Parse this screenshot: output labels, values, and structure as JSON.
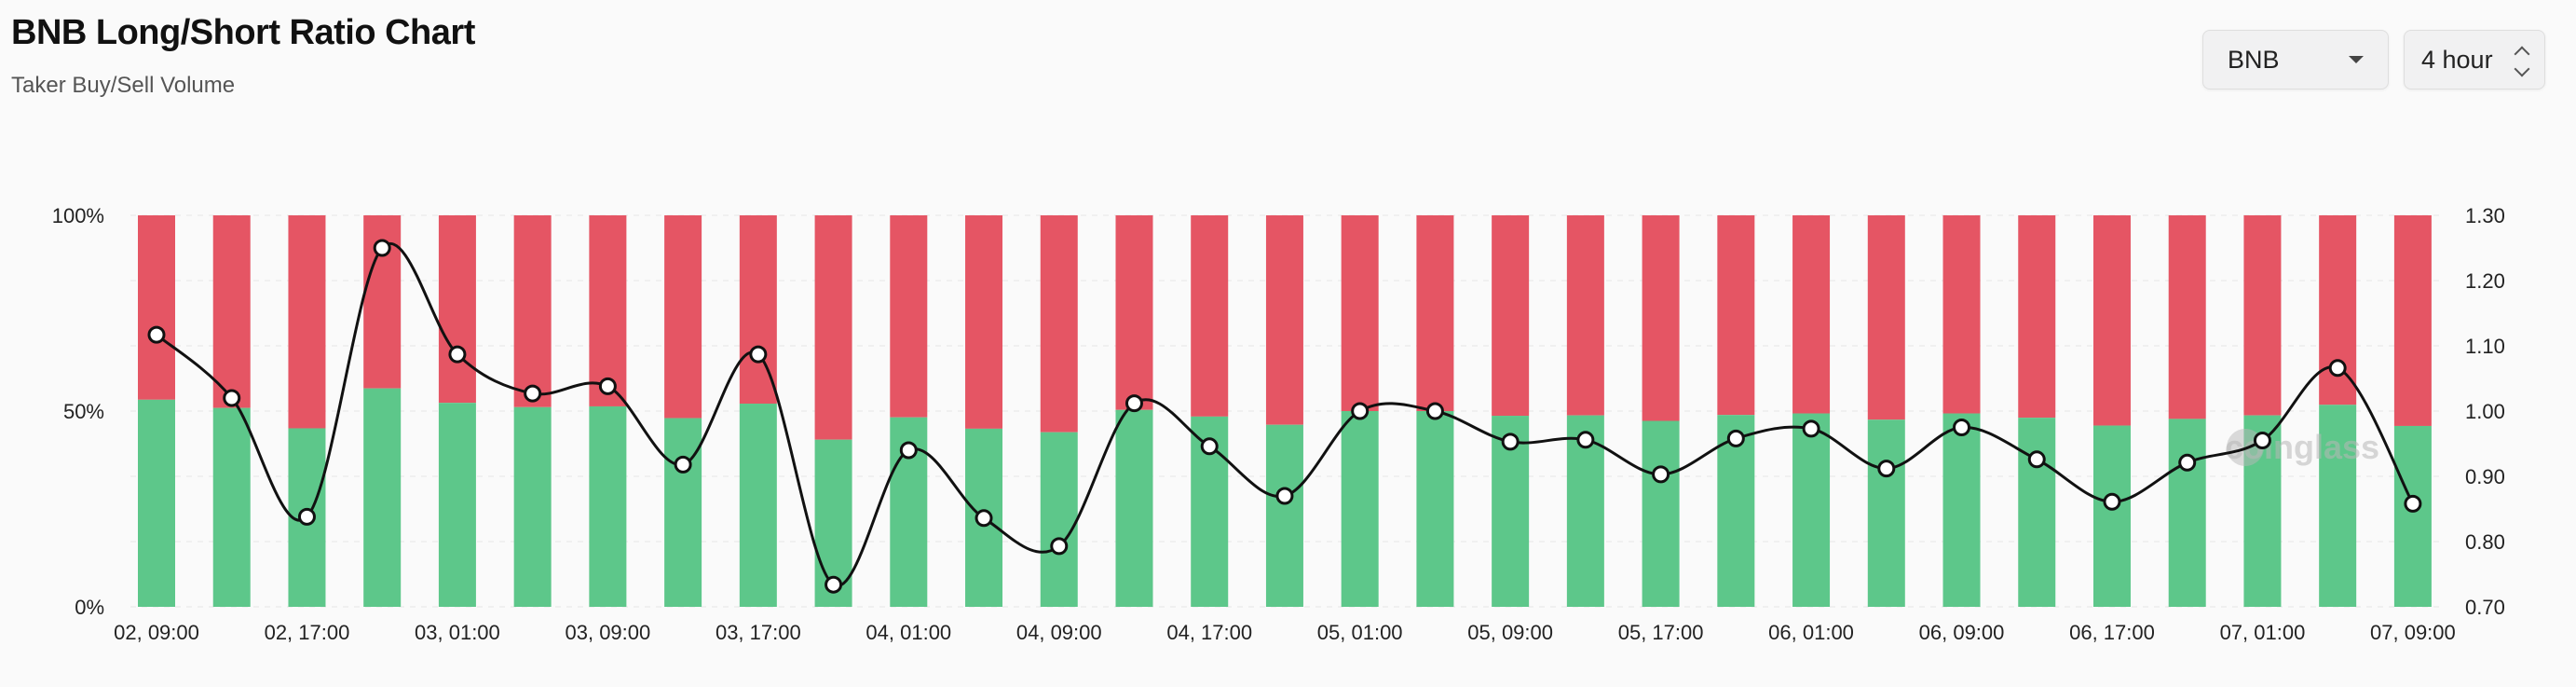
{
  "header": {
    "title": "BNB Long/Short Ratio Chart",
    "subtitle": "Taker Buy/Sell Volume"
  },
  "controls": {
    "symbol_label": "BNB",
    "interval_label": "4 hour"
  },
  "watermark": "coinglass",
  "colors": {
    "long": "#5dc78a",
    "short": "#e55564",
    "line": "#111111"
  },
  "chart_data": {
    "type": "bar",
    "stacked": true,
    "x_tick_labels": [
      "02, 09:00",
      "02, 17:00",
      "03, 01:00",
      "03, 09:00",
      "03, 17:00",
      "04, 01:00",
      "04, 09:00",
      "04, 17:00",
      "05, 01:00",
      "05, 09:00",
      "05, 17:00",
      "06, 01:00",
      "06, 09:00",
      "06, 17:00",
      "07, 01:00",
      "07, 09:00"
    ],
    "y_left": {
      "ticks": [
        "0%",
        "50%",
        "100%"
      ],
      "range": [
        0,
        100
      ]
    },
    "y_right": {
      "ticks": [
        "0.70",
        "0.80",
        "0.90",
        "1.00",
        "1.10",
        "1.20",
        "1.30"
      ],
      "range": [
        0.7,
        1.3
      ]
    },
    "series": [
      {
        "name": "long",
        "axis": "left",
        "values": [
          52.9,
          50.8,
          45.6,
          55.8,
          52.1,
          51.0,
          51.2,
          48.2,
          51.9,
          42.7,
          48.4,
          45.5,
          44.6,
          50.3,
          48.6,
          46.5,
          50.0,
          50.0,
          48.8,
          48.9,
          47.5,
          49.0,
          49.4,
          47.8,
          49.4,
          48.3,
          46.3,
          48.0,
          48.9,
          51.6,
          46.2
        ]
      },
      {
        "name": "short",
        "axis": "left",
        "values": [
          47.1,
          49.2,
          54.4,
          44.2,
          47.9,
          49.0,
          48.8,
          51.8,
          48.1,
          57.3,
          51.6,
          54.5,
          55.4,
          49.7,
          51.4,
          53.5,
          50.0,
          50.0,
          51.2,
          51.1,
          52.5,
          51.0,
          50.6,
          52.2,
          50.6,
          51.7,
          53.7,
          52.0,
          51.1,
          48.4,
          53.8
        ]
      },
      {
        "name": "ratio",
        "axis": "right",
        "type": "line",
        "values": [
          1.117,
          1.02,
          0.838,
          1.25,
          1.087,
          1.027,
          1.038,
          0.918,
          1.087,
          0.734,
          0.94,
          0.836,
          0.793,
          1.012,
          0.946,
          0.87,
          1.0,
          1.0,
          0.953,
          0.956,
          0.903,
          0.958,
          0.973,
          0.912,
          0.975,
          0.926,
          0.861,
          0.921,
          0.955,
          1.066,
          0.858
        ]
      }
    ]
  }
}
